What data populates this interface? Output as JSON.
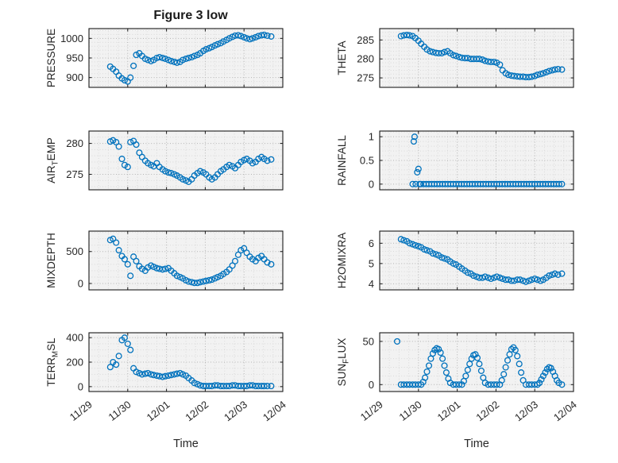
{
  "title": "Figure 3 low",
  "xlabel": "Time",
  "marker_color": "#0072BD",
  "chart_data": {
    "type": "scatter",
    "marker": "open-circle",
    "grid": "major-and-minor-dotted",
    "legend": "none",
    "x_axis": {
      "lim": [
        0,
        5
      ],
      "ticks": [
        0,
        1,
        2,
        3,
        4,
        5
      ],
      "tick_labels": [
        "11/29",
        "11/30",
        "12/01",
        "12/02",
        "12/03",
        "12/04"
      ],
      "minor_step": 0.25,
      "label": "Time"
    },
    "x_common": [
      0.55,
      0.62,
      0.7,
      0.77,
      0.85,
      0.92,
      1.0,
      1.07,
      1.15,
      1.22,
      1.3,
      1.37,
      1.45,
      1.52,
      1.6,
      1.67,
      1.75,
      1.82,
      1.9,
      1.97,
      2.05,
      2.12,
      2.2,
      2.27,
      2.35,
      2.42,
      2.5,
      2.57,
      2.65,
      2.72,
      2.8,
      2.87,
      2.95,
      3.02,
      3.1,
      3.17,
      3.25,
      3.32,
      3.4,
      3.47,
      3.55,
      3.62,
      3.7,
      3.77,
      3.85,
      3.92,
      4.0,
      4.07,
      4.15,
      4.22,
      4.3,
      4.37,
      4.45,
      4.52,
      4.6,
      4.7
    ],
    "subplots": [
      {
        "id": "pressure",
        "ylabel": "PRESSURE",
        "ylabel_parts": [
          {
            "text": "PRESSURE"
          }
        ],
        "ylim": [
          875,
          1025
        ],
        "yticks": [
          900,
          950,
          1000
        ],
        "yminor": 10,
        "x": "common",
        "y": [
          928,
          922,
          915,
          905,
          898,
          893,
          890,
          900,
          930,
          958,
          962,
          955,
          948,
          945,
          942,
          945,
          950,
          952,
          950,
          948,
          945,
          942,
          940,
          938,
          940,
          945,
          948,
          950,
          952,
          955,
          958,
          962,
          968,
          972,
          975,
          978,
          982,
          985,
          988,
          992,
          996,
          1000,
          1004,
          1007,
          1008,
          1006,
          1003,
          1000,
          998,
          1000,
          1003,
          1006,
          1008,
          1009,
          1007,
          1005
        ]
      },
      {
        "id": "theta",
        "ylabel": "THETA",
        "ylabel_parts": [
          {
            "text": "THETA"
          }
        ],
        "ylim": [
          272.5,
          288
        ],
        "yticks": [
          275,
          280,
          285
        ],
        "yminor": 1,
        "x": "common",
        "y": [
          286,
          286.2,
          286.3,
          286.2,
          286,
          285.5,
          284.8,
          284,
          283.2,
          282.5,
          282,
          281.8,
          281.6,
          281.5,
          281.5,
          281.8,
          282,
          281.5,
          281,
          280.8,
          280.5,
          280.3,
          280.2,
          280.2,
          280,
          280,
          280,
          280,
          279.8,
          279.5,
          279.3,
          279.2,
          279.2,
          279,
          278.5,
          277,
          276.2,
          275.8,
          275.6,
          275.5,
          275.4,
          275.3,
          275.3,
          275.2,
          275.2,
          275.3,
          275.5,
          275.8,
          276,
          276.2,
          276.5,
          276.8,
          277,
          277.2,
          277.3,
          277.2
        ]
      },
      {
        "id": "air_temp",
        "ylabel": "AIR_TEMP",
        "ylabel_parts": [
          {
            "text": "AIR"
          },
          {
            "text": "T",
            "sub": true
          },
          {
            "text": "EMP"
          }
        ],
        "ylim": [
          272.5,
          282
        ],
        "yticks": [
          275,
          280
        ],
        "yminor": 1,
        "x": "common",
        "y": [
          280.3,
          280.5,
          280.2,
          279.5,
          277.5,
          276.5,
          276.2,
          280.2,
          280.4,
          279.8,
          278.5,
          277.8,
          277.2,
          276.8,
          276.5,
          276.3,
          276.8,
          276.2,
          275.8,
          275.5,
          275.3,
          275.2,
          275,
          274.8,
          274.5,
          274.2,
          274,
          273.8,
          274.2,
          274.8,
          275.2,
          275.5,
          275.3,
          275,
          274.5,
          274.2,
          274.5,
          275,
          275.5,
          275.8,
          276.2,
          276.5,
          276.3,
          276,
          276.5,
          277,
          277.3,
          277.5,
          277.2,
          276.8,
          277,
          277.5,
          277.8,
          277.5,
          277.2,
          277.4
        ]
      },
      {
        "id": "rainfall",
        "ylabel": "RAINFALL",
        "ylabel_parts": [
          {
            "text": "RAINFALL"
          }
        ],
        "ylim": [
          -0.12,
          1.12
        ],
        "yticks": [
          0,
          0.5,
          1
        ],
        "yminor": 0.1,
        "x": [
          0.85,
          0.88,
          0.9,
          0.93,
          0.97,
          1.0,
          1.03,
          1.06,
          1.13,
          1.2,
          1.27,
          1.34,
          1.41,
          1.48,
          1.55,
          1.62,
          1.69,
          1.76,
          1.83,
          1.9,
          1.97,
          2.04,
          2.11,
          2.18,
          2.25,
          2.32,
          2.39,
          2.46,
          2.53,
          2.6,
          2.67,
          2.74,
          2.81,
          2.88,
          2.95,
          3.02,
          3.09,
          3.16,
          3.23,
          3.3,
          3.37,
          3.44,
          3.51,
          3.58,
          3.65,
          3.72,
          3.79,
          3.86,
          3.93,
          4.0,
          4.07,
          4.14,
          4.21,
          4.28,
          4.35,
          4.42,
          4.49,
          4.56,
          4.63,
          4.7
        ],
        "y": [
          0,
          0.9,
          1.0,
          0,
          0.25,
          0.32,
          0,
          0,
          0,
          0,
          0,
          0,
          0,
          0,
          0,
          0,
          0,
          0,
          0,
          0,
          0,
          0,
          0,
          0,
          0,
          0,
          0,
          0,
          0,
          0,
          0,
          0,
          0,
          0,
          0,
          0,
          0,
          0,
          0,
          0,
          0,
          0,
          0,
          0,
          0,
          0,
          0,
          0,
          0,
          0,
          0,
          0,
          0,
          0,
          0,
          0,
          0,
          0,
          0,
          0
        ]
      },
      {
        "id": "mixdepth",
        "ylabel": "MIXDEPTH",
        "ylabel_parts": [
          {
            "text": "MIXDEPTH"
          }
        ],
        "ylim": [
          -100,
          820
        ],
        "yticks": [
          0,
          500
        ],
        "yminor": 100,
        "x": "common",
        "y": [
          680,
          700,
          640,
          520,
          430,
          380,
          300,
          120,
          420,
          350,
          270,
          230,
          200,
          250,
          280,
          260,
          240,
          230,
          220,
          230,
          240,
          200,
          160,
          120,
          100,
          80,
          50,
          30,
          20,
          10,
          10,
          20,
          30,
          40,
          50,
          60,
          80,
          100,
          120,
          150,
          180,
          220,
          280,
          350,
          450,
          520,
          550,
          480,
          420,
          380,
          350,
          400,
          430,
          380,
          330,
          300
        ]
      },
      {
        "id": "h2omixra",
        "ylabel": "H2OMIXRA",
        "ylabel_parts": [
          {
            "text": "H2OMIXRA"
          }
        ],
        "ylim": [
          3.7,
          6.6
        ],
        "yticks": [
          4,
          5,
          6
        ],
        "yminor": 0.2,
        "x": "common",
        "y": [
          6.2,
          6.15,
          6.1,
          6.0,
          5.95,
          5.9,
          5.85,
          5.8,
          5.7,
          5.65,
          5.6,
          5.5,
          5.45,
          5.4,
          5.3,
          5.25,
          5.2,
          5.1,
          5.0,
          4.95,
          4.85,
          4.75,
          4.65,
          4.55,
          4.5,
          4.4,
          4.35,
          4.3,
          4.3,
          4.35,
          4.3,
          4.25,
          4.3,
          4.35,
          4.3,
          4.25,
          4.2,
          4.2,
          4.15,
          4.15,
          4.2,
          4.2,
          4.15,
          4.1,
          4.15,
          4.2,
          4.25,
          4.2,
          4.15,
          4.2,
          4.3,
          4.4,
          4.45,
          4.5,
          4.45,
          4.5
        ]
      },
      {
        "id": "terr_msl",
        "ylabel": "TERR_MSL",
        "ylabel_parts": [
          {
            "text": "TERR"
          },
          {
            "text": "M",
            "sub": true
          },
          {
            "text": "SL"
          }
        ],
        "ylim": [
          -40,
          440
        ],
        "yticks": [
          0,
          200,
          400
        ],
        "yminor": 50,
        "x": "common",
        "y": [
          160,
          200,
          180,
          250,
          380,
          400,
          350,
          300,
          150,
          120,
          110,
          100,
          105,
          110,
          100,
          95,
          90,
          85,
          80,
          85,
          90,
          95,
          100,
          105,
          110,
          100,
          90,
          70,
          50,
          30,
          20,
          10,
          5,
          5,
          5,
          5,
          10,
          10,
          5,
          5,
          5,
          5,
          10,
          10,
          5,
          5,
          5,
          5,
          10,
          10,
          5,
          5,
          5,
          5,
          5,
          5
        ]
      },
      {
        "id": "sun_flux",
        "ylabel": "SUN_FLUX",
        "ylabel_parts": [
          {
            "text": "SUN"
          },
          {
            "text": "F",
            "sub": true
          },
          {
            "text": "LUX"
          }
        ],
        "ylim": [
          -8,
          60
        ],
        "yticks": [
          0,
          50
        ],
        "yminor": 10,
        "x": [
          0.45,
          0.55,
          0.62,
          0.7,
          0.77,
          0.85,
          0.92,
          1.0,
          1.07,
          1.12,
          1.17,
          1.22,
          1.27,
          1.32,
          1.37,
          1.42,
          1.47,
          1.52,
          1.57,
          1.62,
          1.67,
          1.72,
          1.77,
          1.82,
          1.9,
          1.97,
          2.05,
          2.12,
          2.17,
          2.22,
          2.27,
          2.32,
          2.37,
          2.42,
          2.47,
          2.52,
          2.57,
          2.62,
          2.67,
          2.72,
          2.8,
          2.87,
          2.95,
          3.02,
          3.1,
          3.15,
          3.2,
          3.25,
          3.3,
          3.35,
          3.4,
          3.45,
          3.5,
          3.55,
          3.6,
          3.65,
          3.7,
          3.77,
          3.85,
          3.92,
          4.0,
          4.07,
          4.12,
          4.17,
          4.22,
          4.27,
          4.32,
          4.37,
          4.42,
          4.47,
          4.52,
          4.57,
          4.62,
          4.7
        ],
        "y": [
          50,
          0,
          0,
          0,
          0,
          0,
          0,
          0,
          0,
          3,
          8,
          15,
          22,
          30,
          36,
          40,
          42,
          41,
          37,
          30,
          22,
          14,
          7,
          2,
          0,
          0,
          0,
          0,
          4,
          10,
          17,
          24,
          30,
          34,
          35,
          31,
          24,
          16,
          8,
          2,
          0,
          0,
          0,
          0,
          0,
          5,
          12,
          20,
          28,
          35,
          41,
          43,
          40,
          33,
          24,
          14,
          5,
          0,
          0,
          0,
          0,
          0,
          2,
          6,
          10,
          14,
          18,
          20,
          19,
          15,
          10,
          5,
          2,
          0
        ]
      }
    ]
  }
}
